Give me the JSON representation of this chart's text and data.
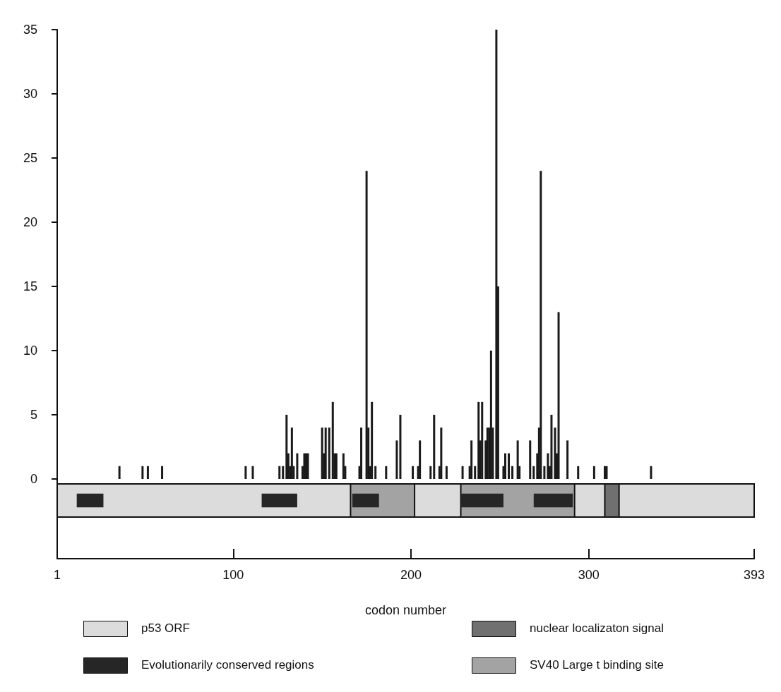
{
  "chart_data": [
    {
      "type": "bar",
      "x": [
        36,
        49,
        52,
        60,
        107,
        111,
        126,
        128,
        130,
        131,
        132,
        133,
        134,
        136,
        139,
        140,
        141,
        142,
        150,
        151,
        152,
        154,
        156,
        157,
        158,
        162,
        163,
        171,
        172,
        175,
        176,
        177,
        178,
        180,
        186,
        192,
        194,
        201,
        204,
        205,
        211,
        213,
        216,
        217,
        220,
        229,
        233,
        234,
        236,
        238,
        239,
        240,
        242,
        243,
        244,
        245,
        246,
        248,
        249,
        252,
        253,
        255,
        257,
        260,
        261,
        267,
        269,
        271,
        272,
        273,
        275,
        277,
        278,
        279,
        281,
        282,
        283,
        288,
        294,
        303,
        309,
        310,
        335
      ],
      "values": [
        1,
        1,
        1,
        1,
        1,
        1,
        1,
        1,
        5,
        2,
        1,
        4,
        1,
        2,
        1,
        2,
        2,
        2,
        4,
        2,
        4,
        4,
        6,
        2,
        2,
        2,
        1,
        1,
        4,
        24,
        4,
        1,
        6,
        1,
        1,
        3,
        5,
        1,
        1,
        3,
        1,
        5,
        1,
        4,
        1,
        1,
        1,
        3,
        1,
        6,
        3,
        6,
        3,
        4,
        4,
        10,
        4,
        35,
        15,
        1,
        2,
        2,
        1,
        3,
        1,
        3,
        1,
        2,
        4,
        24,
        1,
        2,
        1,
        5,
        4,
        2,
        13,
        3,
        1,
        1,
        1,
        1,
        1
      ],
      "color": "#1a1a1a",
      "xlim": [
        1,
        393
      ],
      "ylim": [
        0,
        35
      ],
      "yticks": [
        0,
        5,
        10,
        15,
        20,
        25,
        30,
        35
      ],
      "tick_labels": "y",
      "grid": false
    },
    {
      "type": "bar",
      "orientation": "horizontal",
      "categories": [
        null
      ],
      "xlabel": "codon number",
      "xlim": [
        1,
        393
      ],
      "xticks": [
        1,
        100,
        200,
        300,
        393
      ],
      "tick_labels": "x",
      "grid": false,
      "legend": "bottom",
      "series": [
        {
          "name": "p53 ORF",
          "color": "#dcdcdc",
          "base": [
            1
          ],
          "values": [
            392
          ]
        },
        {
          "name": "SV40 Large t binding site",
          "color": "#a3a3a3",
          "base": [
            166
          ],
          "values": [
            36
          ]
        },
        {
          "color": "#a3a3a3",
          "base": [
            228
          ],
          "values": [
            64
          ]
        },
        {
          "name": "nuclear localizaton signal",
          "color": "#707070",
          "base": [
            309
          ],
          "values": [
            8
          ]
        },
        {
          "name": "Evolutionarily conserved regions",
          "color": "#262626",
          "base": [
            12
          ],
          "values": [
            15
          ]
        },
        {
          "color": "#262626",
          "base": [
            116
          ],
          "values": [
            20
          ]
        },
        {
          "color": "#262626",
          "base": [
            167
          ],
          "values": [
            15
          ]
        },
        {
          "color": "#262626",
          "base": [
            228
          ],
          "values": [
            24
          ]
        },
        {
          "color": "#262626",
          "base": [
            269
          ],
          "values": [
            22
          ]
        }
      ]
    }
  ]
}
